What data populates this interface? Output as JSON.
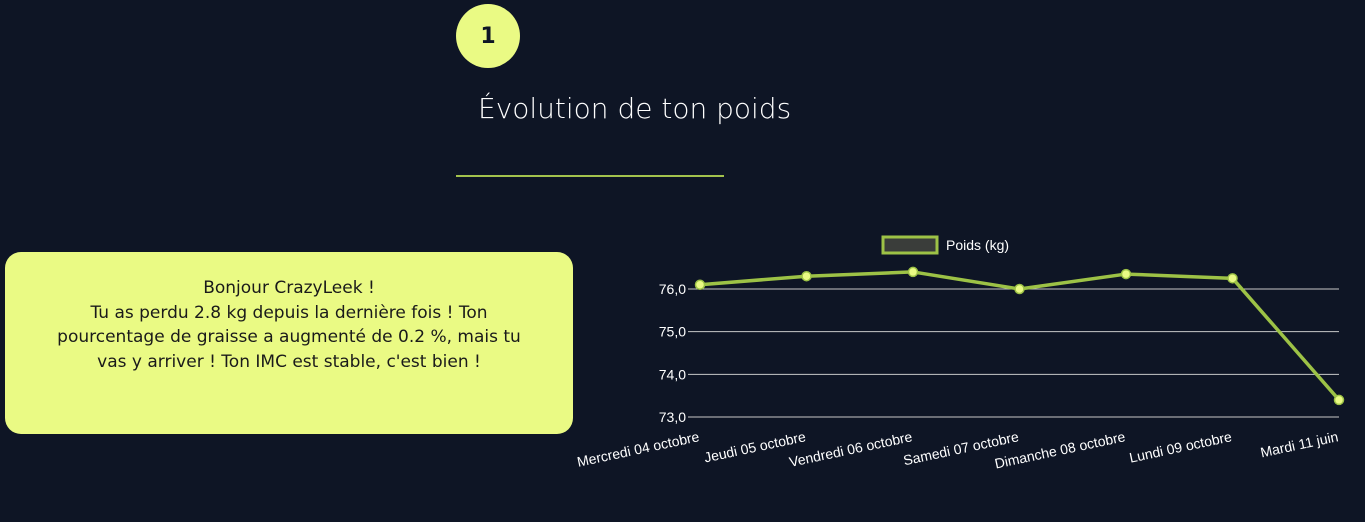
{
  "step": {
    "number": "1"
  },
  "section": {
    "title": "Évolution de ton poids"
  },
  "message": {
    "lines": [
      "Bonjour CrazyLeek !",
      "Tu as perdu 2.8 kg depuis la dernière fois ! Ton",
      "pourcentage de graisse a augmenté de 0.2 %, mais tu",
      "vas y arriver ! Ton IMC est stable, c'est bien !"
    ]
  },
  "colors": {
    "background": "#0e1525",
    "accent": "#eafa84",
    "line": "#9dc246",
    "grid": "#c8c8c8"
  },
  "chart_data": {
    "type": "line",
    "title": "",
    "xlabel": "",
    "ylabel": "",
    "categories": [
      "Mercredi 04 octobre",
      "Jeudi 05 octobre",
      "Vendredi 06 octobre",
      "Samedi 07 octobre",
      "Dimanche 08 octobre",
      "Lundi 09 octobre",
      "Mardi 11 juin"
    ],
    "series": [
      {
        "name": "Poids (kg)",
        "values": [
          76.1,
          76.3,
          76.4,
          76.0,
          76.35,
          76.25,
          73.4
        ]
      }
    ],
    "ylim": [
      73.0,
      76.0
    ],
    "yticks": [
      73.0,
      74.0,
      75.0,
      76.0
    ],
    "ytick_labels": [
      "73,0",
      "74,0",
      "75,0",
      "76,0"
    ],
    "grid": true,
    "legend": "top-center"
  }
}
